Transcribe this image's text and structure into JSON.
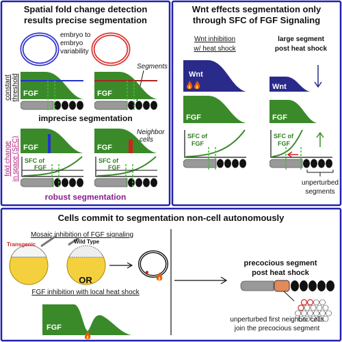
{
  "panel_spatial": {
    "title": [
      "Spatial fold change detection",
      "results precise segmentation"
    ],
    "variability": [
      "embryo to",
      "embryo",
      "variability"
    ],
    "segments": "Segments",
    "threshold_axis": [
      "constant",
      "threshold"
    ],
    "fgf_labels": [
      "FGF",
      "FGF",
      "FGF",
      "FGF"
    ],
    "imprecise": "imprecise segmentation",
    "neighbor": [
      "Neighbor",
      "cells"
    ],
    "sfc_axis": [
      "fold change",
      "in space (SFC)"
    ],
    "sfc_labels": [
      [
        "SFC of",
        "FGF"
      ],
      [
        "SFC of",
        "FGF"
      ]
    ],
    "robust": "robust segmentation"
  },
  "panel_wnt": {
    "title": [
      "Wnt effects segmentation only",
      "through SFC of FGF Signaling"
    ],
    "col1": [
      "Wnt inhibition",
      "w/ heat shock"
    ],
    "col2": [
      "large segment",
      "post heat shock"
    ],
    "wnt_labels": [
      "Wnt",
      "Wnt"
    ],
    "fgf_labels": [
      "FGF",
      "FGF"
    ],
    "sfc_labels": [
      [
        "SFC of",
        "FGF"
      ],
      [
        "SFC of",
        "FGF"
      ]
    ],
    "unperturbed": [
      "unperturbed",
      "segments"
    ]
  },
  "panel_cells": {
    "title": "Cells commit to segmentation non-cell autonomously",
    "mosaic": "Mosaic inhibition of FGF signaling",
    "transgenic": "Transgenic",
    "wild_type": "Wild Type",
    "or": "OR",
    "local": "FGF inhibition with local heat shock",
    "fgf": "FGF",
    "precocious": [
      "precocious segment",
      "post heat shock"
    ],
    "join": [
      "unperturbed first neighbor cells",
      "join the precocious segment"
    ]
  }
}
